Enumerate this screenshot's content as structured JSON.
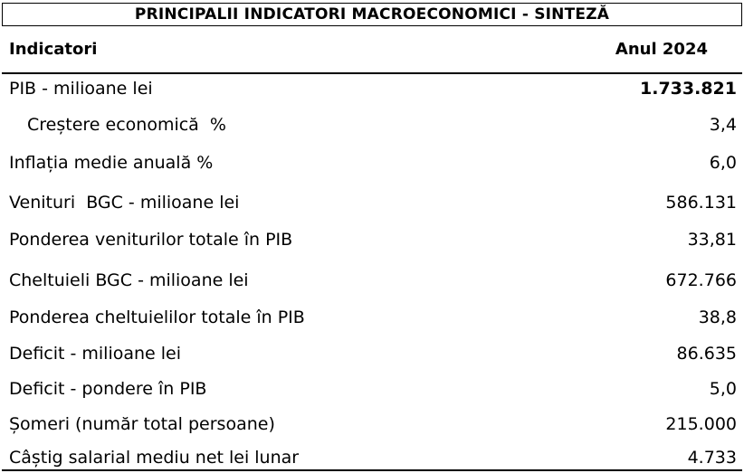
{
  "title": "PRINCIPALII INDICATORI MACROECONOMICI - SINTEZĂ",
  "header": {
    "indicator_label": "Indicatori",
    "year_label": "Anul 2024"
  },
  "rows": [
    {
      "label": "PIB - milioane lei",
      "value": "1.733.821",
      "bold_value": true,
      "indent": false
    },
    {
      "label": "Creștere economică  %",
      "value": "3,4",
      "bold_value": false,
      "indent": true
    },
    {
      "label": "Inflația medie anuală %",
      "value": "6,0",
      "bold_value": false,
      "indent": false
    },
    {
      "label": "Venituri  BGC - milioane lei",
      "value": "586.131",
      "bold_value": false,
      "indent": false
    },
    {
      "label": "Ponderea veniturilor totale în PIB",
      "value": "33,81",
      "bold_value": false,
      "indent": false
    },
    {
      "label": "Cheltuieli BGC - milioane lei",
      "value": "672.766",
      "bold_value": false,
      "indent": false
    },
    {
      "label": "Ponderea cheltuielilor totale în PIB",
      "value": "38,8",
      "bold_value": false,
      "indent": false
    },
    {
      "label": "Deficit - milioane lei",
      "value": "86.635",
      "bold_value": false,
      "indent": false
    },
    {
      "label": "Deficit - pondere în PIB",
      "value": "5,0",
      "bold_value": false,
      "indent": false
    },
    {
      "label": "Șomeri (număr total persoane)",
      "value": "215.000",
      "bold_value": false,
      "indent": false
    },
    {
      "label": "Câștig salarial mediu net lei lunar",
      "value": "4.733",
      "bold_value": false,
      "indent": false
    }
  ]
}
